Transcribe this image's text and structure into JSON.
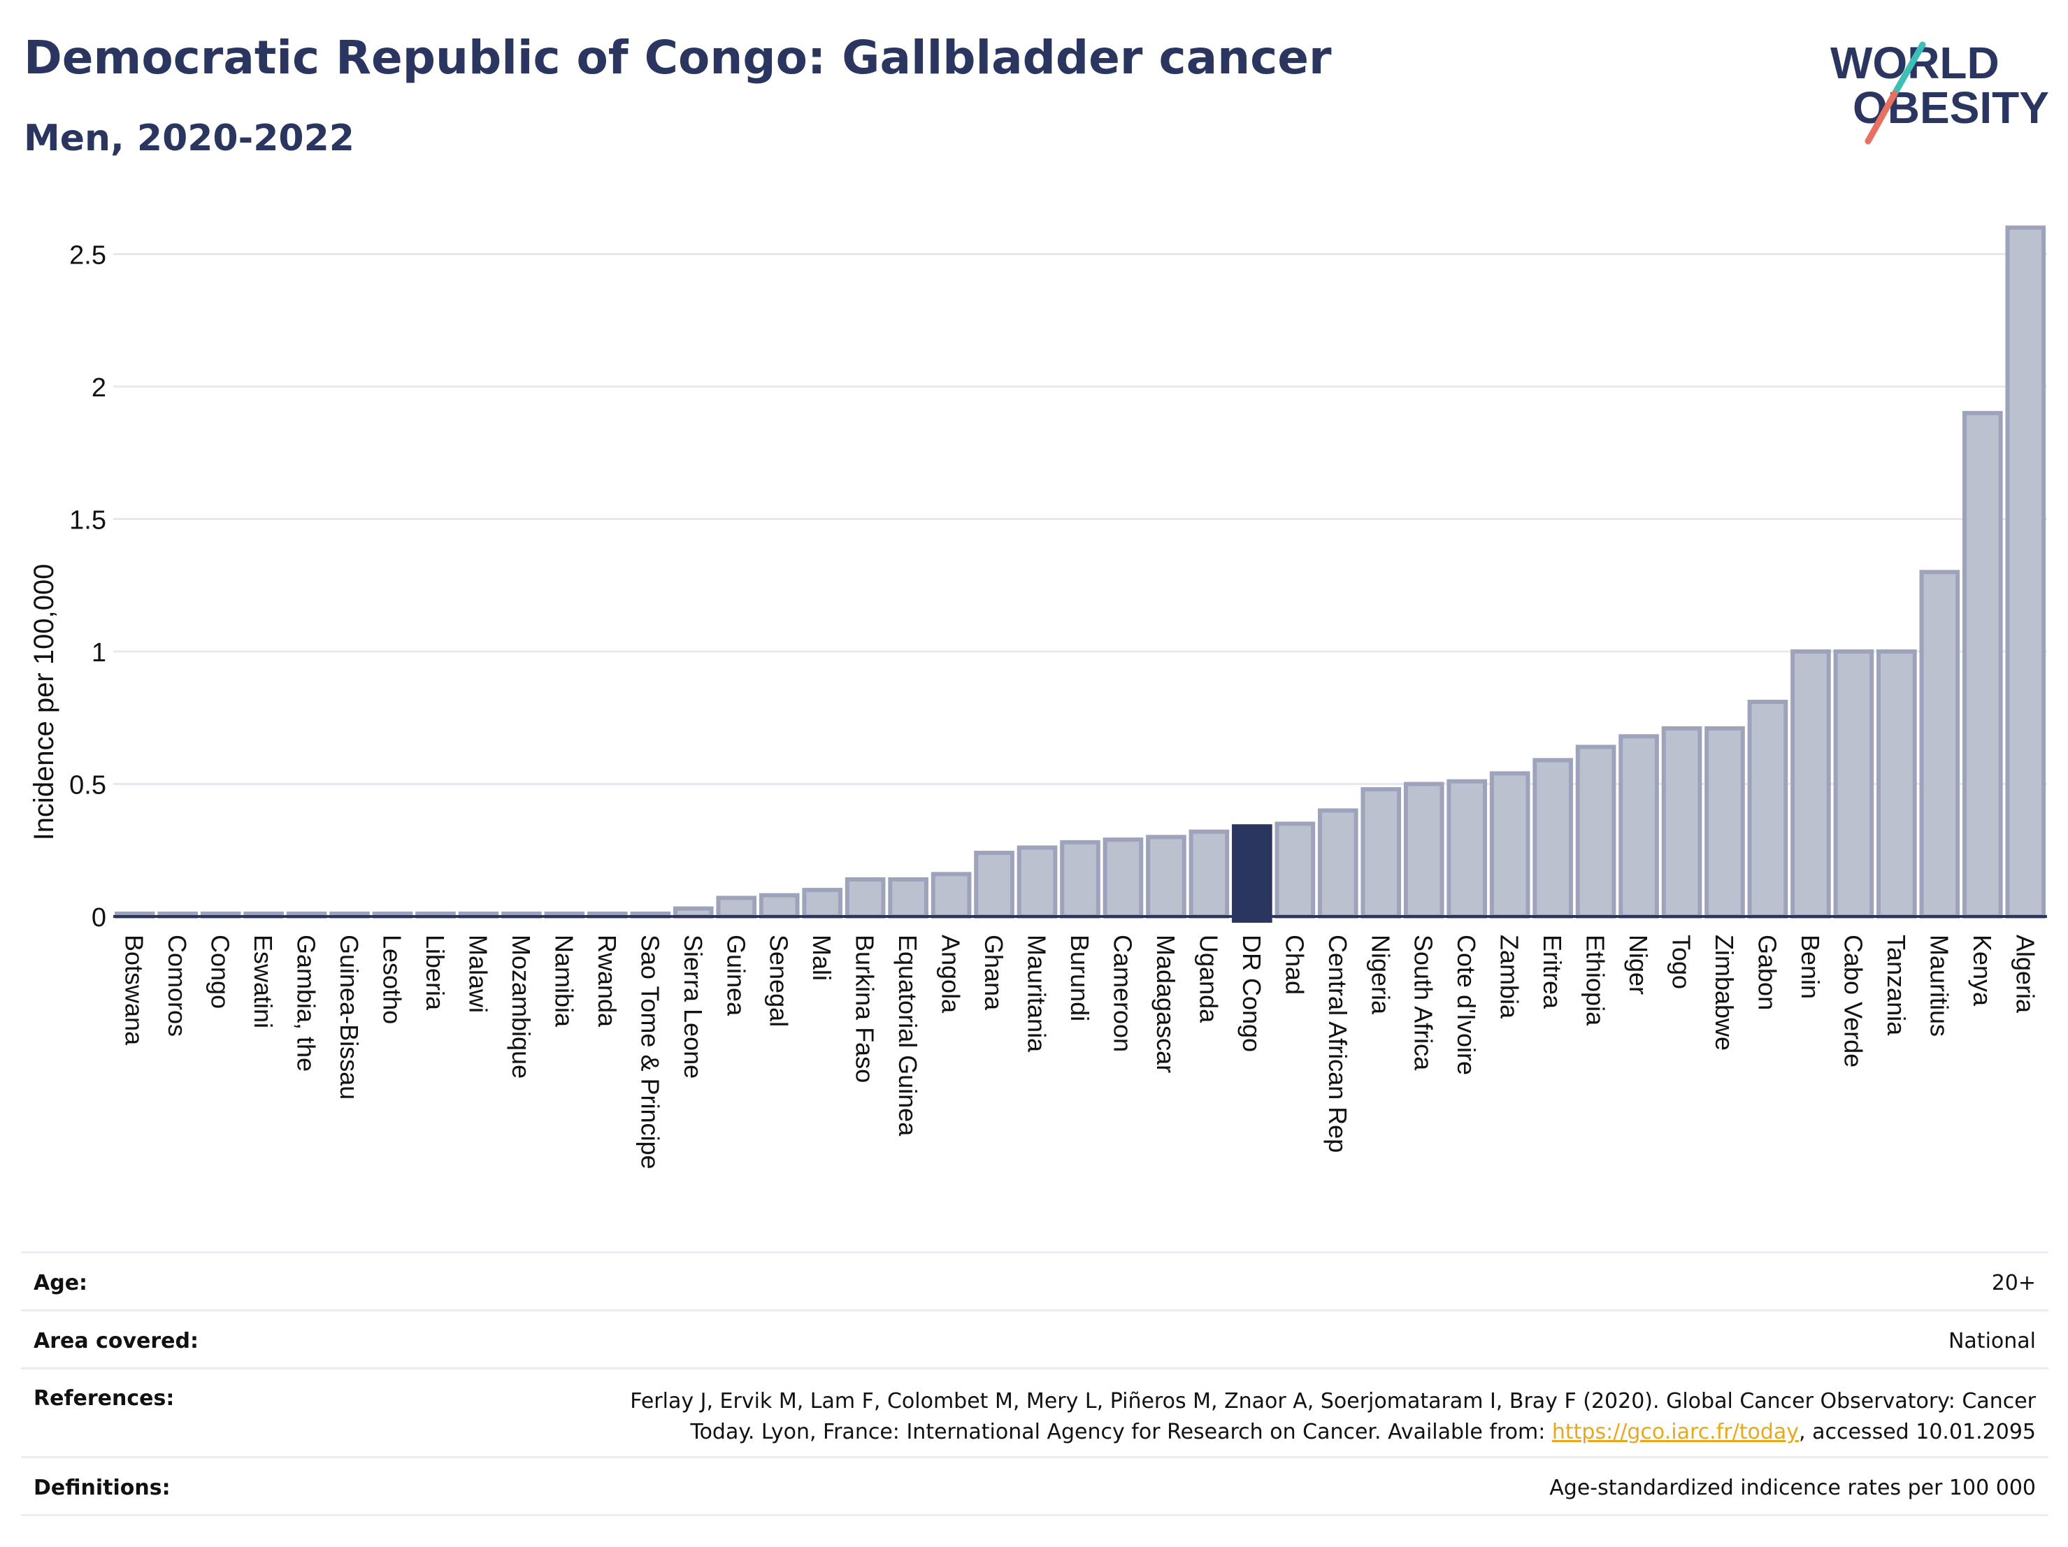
{
  "header": {
    "title": "Democratic Republic of Congo: Gallbladder cancer",
    "subtitle": "Men, 2020-2022"
  },
  "logo": {
    "line1": "WORLD",
    "line2": "OBESITY",
    "accent1": "#3dbfb8",
    "accent2": "#e8705f"
  },
  "chart_data": {
    "type": "bar",
    "ylabel": "Incidence per 100,000",
    "ylim": [
      0,
      2.62
    ],
    "yticks": [
      0,
      0.5,
      1,
      1.5,
      2,
      2.5
    ],
    "ytick_labels": [
      "0",
      "0.5",
      "1",
      "1.5",
      "2",
      "2.5"
    ],
    "grid": true,
    "highlight": "DR Congo",
    "colors": {
      "bar": "#bcc1d0",
      "bar_border": "#9da3bb",
      "highlight": "#2a3560"
    },
    "categories": [
      "Botswana",
      "Comoros",
      "Congo",
      "Eswatini",
      "Gambia, the",
      "Guinea-Bissau",
      "Lesotho",
      "Liberia",
      "Malawi",
      "Mozambique",
      "Namibia",
      "Rwanda",
      "Sao Tome & Principe",
      "Sierra Leone",
      "Guinea",
      "Senegal",
      "Mali",
      "Burkina Faso",
      "Equatorial Guinea",
      "Angola",
      "Ghana",
      "Mauritania",
      "Burundi",
      "Cameroon",
      "Madagascar",
      "Uganda",
      "DR Congo",
      "Chad",
      "Central African Rep",
      "Nigeria",
      "South Africa",
      "Cote d'Ivoire",
      "Zambia",
      "Eritrea",
      "Ethiopia",
      "Niger",
      "Togo",
      "Zimbabwe",
      "Gabon",
      "Benin",
      "Cabo Verde",
      "Tanzania",
      "Mauritius",
      "Kenya",
      "Algeria"
    ],
    "values": [
      0.01,
      0.01,
      0.01,
      0.01,
      0.01,
      0.01,
      0.01,
      0.01,
      0.01,
      0.01,
      0.01,
      0.01,
      0.01,
      0.03,
      0.07,
      0.08,
      0.1,
      0.14,
      0.14,
      0.16,
      0.24,
      0.26,
      0.28,
      0.29,
      0.3,
      0.32,
      0.34,
      0.35,
      0.4,
      0.48,
      0.5,
      0.51,
      0.54,
      0.59,
      0.64,
      0.68,
      0.71,
      0.71,
      0.81,
      1.0,
      1.0,
      1.0,
      1.3,
      1.9,
      2.6
    ]
  },
  "footer": {
    "age": {
      "label": "Age:",
      "value": "20+"
    },
    "area": {
      "label": "Area covered:",
      "value": "National"
    },
    "references": {
      "label": "References:",
      "line1": "Ferlay J, Ervik M, Lam F, Colombet M, Mery L, Piñeros M, Znaor A, Soerjomataram I, Bray F (2020). Global Cancer Observatory: Cancer",
      "line2_pre": "Today. Lyon, France: International Agency for Research on Cancer. Available from: ",
      "link": "https://gco.iarc.fr/today",
      "line2_post": ", accessed 10.01.2095"
    },
    "definitions": {
      "label": "Definitions:",
      "value": "Age-standardized indicence rates per 100 000"
    }
  }
}
